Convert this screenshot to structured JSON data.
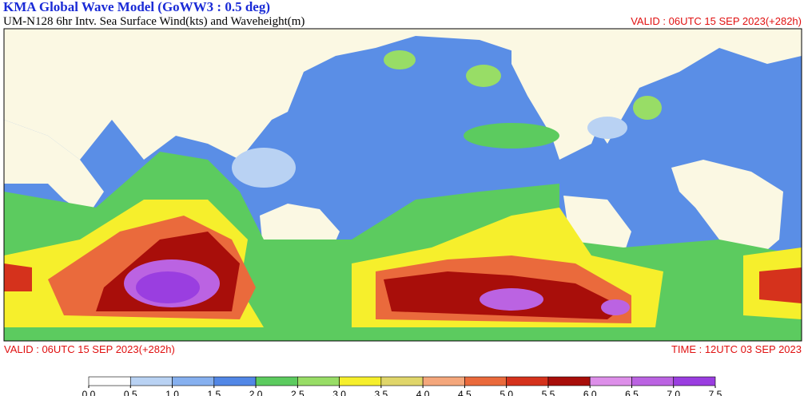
{
  "header": {
    "title": "KMA  Global Wave Model (GoWW3 : 0.5 deg)",
    "subtitle": "UM-N128  6hr Intv. Sea Surface Wind(kts) and Waveheight(m)",
    "valid": "VALID : 06UTC 15 SEP 2023(+282h)"
  },
  "footer": {
    "valid": "VALID : 06UTC 15 SEP 2023(+282h)",
    "time": "TIME : 12UTC 03 SEP 2023"
  },
  "colorbar": {
    "colors": [
      "#ffffff",
      "#b9d2f3",
      "#86b0ef",
      "#5287e6",
      "#5ccb5f",
      "#98dd66",
      "#f6ef2c",
      "#e0d66a",
      "#f4a77c",
      "#ea6a3c",
      "#d5321c",
      "#a80e0a",
      "#dd8fe9",
      "#bb63e2",
      "#9a3ee0"
    ],
    "ticks": [
      {
        "value": 0,
        "label": "0.0"
      },
      {
        "value": 0.5,
        "label": "0.5"
      },
      {
        "value": 1,
        "label": "1.0"
      },
      {
        "value": 1.5,
        "label": "1.5"
      },
      {
        "value": 2,
        "label": "2.0"
      },
      {
        "value": 2.5,
        "label": "2.5"
      },
      {
        "value": 3,
        "label": "3.0"
      },
      {
        "value": 3.5,
        "label": "3.5"
      },
      {
        "value": 4,
        "label": "4.0"
      },
      {
        "value": 4.5,
        "label": "4.5"
      },
      {
        "value": 5,
        "label": "5.0"
      },
      {
        "value": 5.5,
        "label": "5.5"
      },
      {
        "value": 6,
        "label": "6.0"
      },
      {
        "value": 6.5,
        "label": "6.5"
      },
      {
        "value": 7,
        "label": "7.0"
      },
      {
        "value": 7.5,
        "label": "7.5"
      }
    ]
  }
}
